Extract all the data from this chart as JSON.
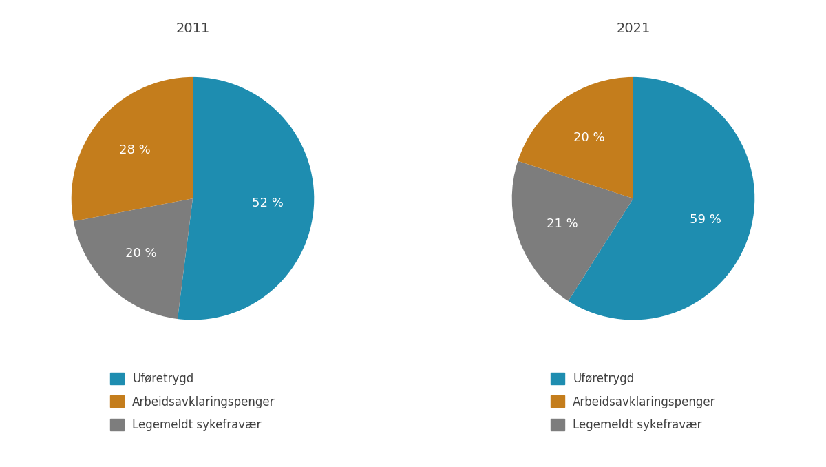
{
  "chart2011": {
    "title": "2011",
    "values": [
      52,
      20,
      28
    ],
    "labels": [
      "52 %",
      "20 %",
      "28 %"
    ],
    "colors": [
      "#1e8db0",
      "#7d7d7d",
      "#c47d1c"
    ],
    "startangle": 90
  },
  "chart2021": {
    "title": "2021",
    "values": [
      59,
      21,
      20
    ],
    "labels": [
      "59 %",
      "21 %",
      "20 %"
    ],
    "colors": [
      "#1e8db0",
      "#7d7d7d",
      "#c47d1c"
    ],
    "startangle": 90
  },
  "legend_labels": [
    "Uføretrygd",
    "Arbeidsavklaringspenger",
    "Legemeldt sykefravær"
  ],
  "legend_colors": [
    "#1e8db0",
    "#c47d1c",
    "#7d7d7d"
  ],
  "background_color": "#ffffff",
  "text_color": "#404040",
  "label_fontsize": 13,
  "title_fontsize": 14,
  "legend_fontsize": 12,
  "legend_marker_size": 12
}
